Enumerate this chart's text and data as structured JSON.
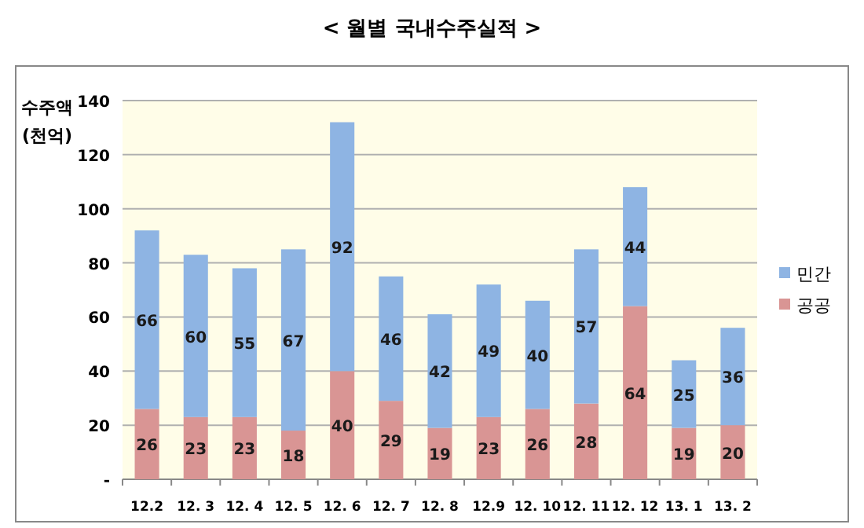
{
  "chart_data": {
    "type": "bar",
    "title": "< 월별 국내수주실적 >",
    "ylabel": "수주액\n(천억)",
    "categories": [
      "12.2",
      "12. 3",
      "12. 4",
      "12. 5",
      "12. 6",
      "12. 7",
      "12. 8",
      "12.9",
      "12. 10",
      "12. 11",
      "12. 12",
      "13. 1",
      "13. 2"
    ],
    "series": [
      {
        "name": "공공",
        "color": "#d99594",
        "values": [
          26,
          23,
          23,
          18,
          40,
          29,
          19,
          23,
          26,
          28,
          64,
          19,
          20
        ]
      },
      {
        "name": "민간",
        "color": "#8eb4e3",
        "values": [
          66,
          60,
          55,
          67,
          92,
          46,
          42,
          49,
          40,
          57,
          44,
          25,
          36
        ]
      }
    ],
    "stacked": true,
    "ylim": [
      0,
      140
    ],
    "yticks": [
      {
        "value": 0,
        "label": "-"
      },
      20,
      40,
      60,
      80,
      100,
      120,
      140
    ],
    "grid": "y",
    "legend": "right",
    "data_labels": true
  }
}
